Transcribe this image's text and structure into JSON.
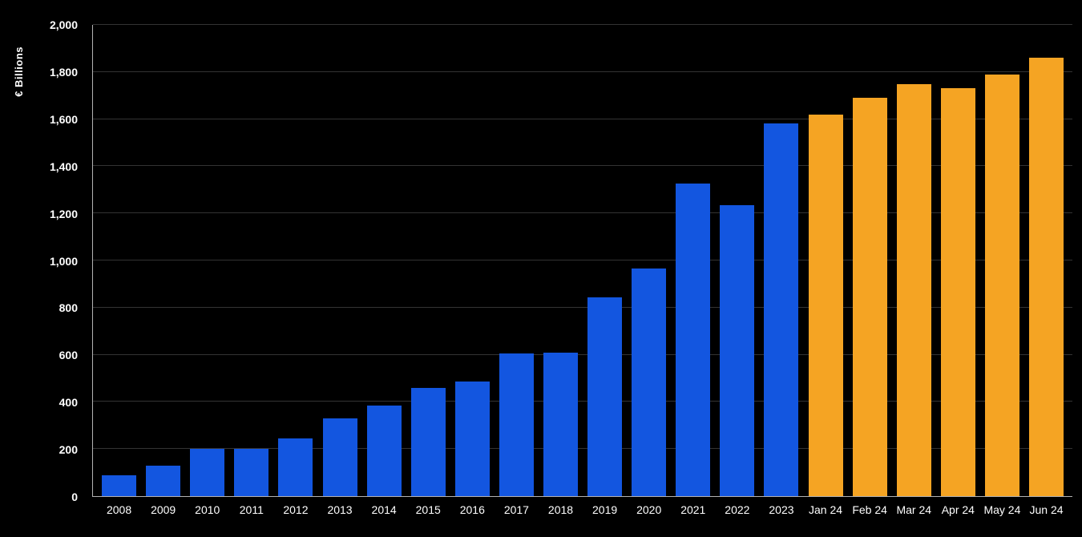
{
  "chart_data": {
    "type": "bar",
    "title": "",
    "ylabel": "€ Billions",
    "xlabel": "",
    "categories": [
      "2008",
      "2009",
      "2010",
      "2011",
      "2012",
      "2013",
      "2014",
      "2015",
      "2016",
      "2017",
      "2018",
      "2019",
      "2020",
      "2021",
      "2022",
      "2023",
      "Jan 24",
      "Feb 24",
      "Mar 24",
      "Apr 24",
      "May 24",
      "Jun 24"
    ],
    "values": [
      90,
      130,
      200,
      200,
      245,
      330,
      385,
      460,
      485,
      605,
      610,
      845,
      965,
      1325,
      1235,
      1580,
      1620,
      1690,
      1750,
      1730,
      1790,
      1860
    ],
    "ylim": [
      0,
      2000
    ],
    "ytick_step": 200,
    "ytick_labels": [
      "0",
      "200",
      "400",
      "600",
      "800",
      "1,000",
      "1,200",
      "1,400",
      "1,600",
      "1,800",
      "2,000"
    ],
    "grid": true,
    "legend": "none",
    "orange_start_index": 16,
    "colors": {
      "blue_bar": "#1356E0",
      "orange_bar": "#F5A423",
      "background": "#000000",
      "gridline": "#333333",
      "axis": "#B3B3B3",
      "text": "#FFFFFF"
    }
  }
}
